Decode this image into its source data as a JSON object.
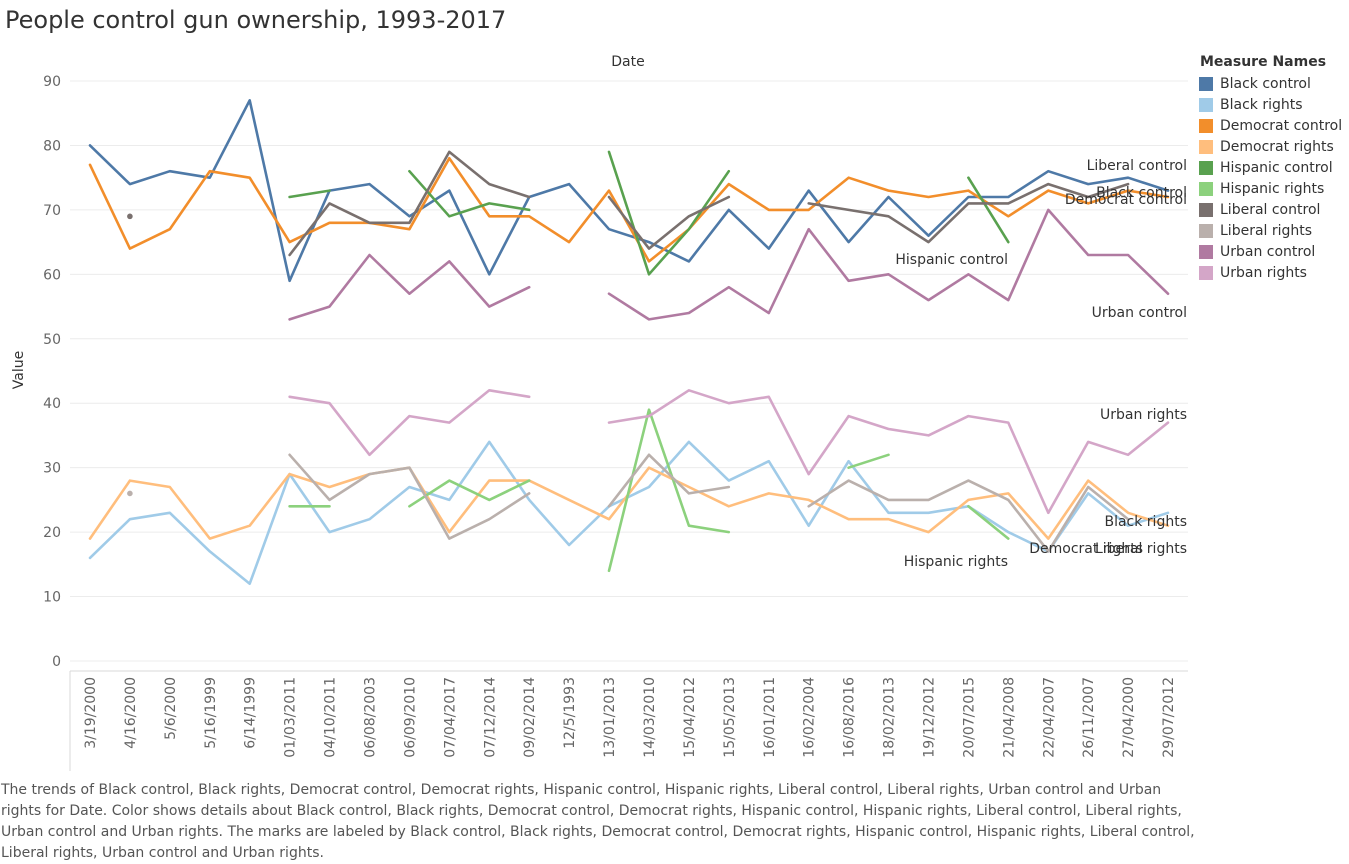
{
  "title": "People control gun ownership, 1993-2017",
  "caption": "The trends of Black control, Black rights, Democrat control, Democrat rights, Hispanic control, Hispanic rights, Liberal control, Liberal rights, Urban control and Urban rights for Date.  Color shows details about Black control, Black rights, Democrat control, Democrat rights, Hispanic control, Hispanic rights, Liberal control, Liberal rights, Urban control and Urban rights.  The marks are labeled by Black control, Black rights, Democrat control, Democrat rights, Hispanic control, Hispanic rights, Liberal control, Liberal rights, Urban control and Urban rights.",
  "legend": {
    "title": "Measure Names",
    "items": [
      {
        "label": "Black control",
        "color": "#4e79a7"
      },
      {
        "label": "Black rights",
        "color": "#a0cbe8"
      },
      {
        "label": "Democrat control",
        "color": "#f28e2b"
      },
      {
        "label": "Democrat rights",
        "color": "#ffbe7d"
      },
      {
        "label": "Hispanic control",
        "color": "#59a14f"
      },
      {
        "label": "Hispanic rights",
        "color": "#8cd17d"
      },
      {
        "label": "Liberal control",
        "color": "#79706e"
      },
      {
        "label": "Liberal rights",
        "color": "#bab0ac"
      },
      {
        "label": "Urban control",
        "color": "#b07aa1"
      },
      {
        "label": "Urban rights",
        "color": "#d4a6c8"
      }
    ]
  },
  "chart_data": {
    "type": "line",
    "xlabel": "Date",
    "ylabel": "Value",
    "ylim": [
      0,
      90
    ],
    "yticks": [
      0,
      10,
      20,
      30,
      40,
      50,
      60,
      70,
      80,
      90
    ],
    "grid": true,
    "legend_position": "right",
    "categories": [
      "3/19/2000",
      "4/16/2000",
      "5/6/2000",
      "5/16/1999",
      "6/14/1999",
      "01/03/2011",
      "04/10/2011",
      "06/08/2003",
      "06/09/2010",
      "07/04/2017",
      "07/12/2014",
      "09/02/2014",
      "12/5/1993",
      "13/01/2013",
      "14/03/2010",
      "15/04/2012",
      "15/05/2013",
      "16/01/2011",
      "16/02/2004",
      "16/08/2016",
      "18/02/2013",
      "19/12/2012",
      "20/07/2015",
      "21/04/2008",
      "22/04/2007",
      "26/11/2007",
      "27/04/2000",
      "29/07/2012"
    ],
    "series": [
      {
        "name": "Black control",
        "color": "#4e79a7",
        "label": "Black control",
        "values": [
          80,
          74,
          76,
          75,
          87,
          59,
          73,
          74,
          69,
          73,
          60,
          72,
          74,
          67,
          65,
          62,
          70,
          64,
          73,
          65,
          72,
          66,
          72,
          72,
          76,
          74,
          75,
          73
        ]
      },
      {
        "name": "Black rights",
        "color": "#a0cbe8",
        "label": "Black rights",
        "values": [
          16,
          22,
          23,
          17,
          12,
          29,
          20,
          22,
          27,
          25,
          34,
          25,
          18,
          24,
          27,
          34,
          28,
          31,
          21,
          31,
          23,
          23,
          24,
          20,
          17,
          26,
          21,
          23
        ]
      },
      {
        "name": "Democrat control",
        "color": "#f28e2b",
        "label": "Democrat control",
        "values": [
          77,
          64,
          67,
          76,
          75,
          65,
          68,
          68,
          67,
          78,
          69,
          69,
          65,
          73,
          62,
          67,
          74,
          70,
          70,
          75,
          73,
          72,
          73,
          69,
          73,
          71,
          73,
          72
        ]
      },
      {
        "name": "Democrat rights",
        "color": "#ffbe7d",
        "label": "Democrat rights",
        "values": [
          19,
          28,
          27,
          19,
          21,
          29,
          27,
          29,
          30,
          20,
          28,
          28,
          25,
          22,
          30,
          27,
          24,
          26,
          25,
          22,
          22,
          20,
          25,
          26,
          19,
          28,
          23,
          21
        ]
      },
      {
        "name": "Hispanic control",
        "color": "#59a14f",
        "label": "Hispanic control",
        "values": [
          null,
          null,
          null,
          null,
          null,
          72,
          73,
          null,
          76,
          69,
          71,
          70,
          null,
          79,
          60,
          67,
          76,
          null,
          null,
          null,
          null,
          null,
          75,
          65,
          null,
          null,
          null,
          null
        ]
      },
      {
        "name": "Hispanic rights",
        "color": "#8cd17d",
        "label": "Hispanic rights",
        "values": [
          null,
          null,
          null,
          null,
          null,
          24,
          24,
          null,
          24,
          28,
          25,
          28,
          null,
          14,
          39,
          21,
          20,
          null,
          null,
          30,
          32,
          null,
          24,
          19,
          null,
          null,
          null,
          null
        ]
      },
      {
        "name": "Liberal control",
        "color": "#79706e",
        "label": "Liberal control",
        "values": [
          null,
          69,
          null,
          null,
          null,
          63,
          71,
          68,
          68,
          79,
          74,
          72,
          null,
          72,
          64,
          69,
          72,
          null,
          71,
          70,
          69,
          65,
          71,
          71,
          74,
          72,
          74,
          null
        ]
      },
      {
        "name": "Liberal rights",
        "color": "#bab0ac",
        "label": "Liberal rights",
        "values": [
          null,
          26,
          null,
          null,
          null,
          32,
          25,
          29,
          30,
          19,
          22,
          26,
          null,
          24,
          32,
          26,
          27,
          null,
          24,
          28,
          25,
          25,
          28,
          25,
          17,
          27,
          22,
          null
        ]
      },
      {
        "name": "Urban control",
        "color": "#b07aa1",
        "label": "Urban control",
        "values": [
          null,
          null,
          null,
          null,
          null,
          53,
          55,
          63,
          57,
          62,
          55,
          58,
          null,
          57,
          53,
          54,
          58,
          54,
          67,
          59,
          60,
          56,
          60,
          56,
          70,
          63,
          63,
          57
        ]
      },
      {
        "name": "Urban rights",
        "color": "#d4a6c8",
        "label": "Urban rights",
        "values": [
          null,
          null,
          null,
          null,
          null,
          41,
          40,
          32,
          38,
          37,
          42,
          41,
          null,
          37,
          38,
          42,
          40,
          41,
          29,
          38,
          36,
          35,
          38,
          37,
          23,
          34,
          32,
          37
        ]
      }
    ],
    "annotations": [
      {
        "text": "Liberal control",
        "series": "Liberal control",
        "at_category": "29/07/2012"
      },
      {
        "text": "Black control",
        "series": "Black control",
        "at_category": "29/07/2012"
      },
      {
        "text": "Democrat control",
        "series": "Democrat control",
        "at_category": "29/07/2012"
      },
      {
        "text": "Hispanic control",
        "series": "Hispanic control",
        "at_category": "18/02/2013"
      },
      {
        "text": "Urban control",
        "series": "Urban control",
        "at_category": "29/07/2012"
      },
      {
        "text": "Urban rights",
        "series": "Urban rights",
        "at_category": "29/07/2012"
      },
      {
        "text": "Black rights",
        "series": "Black rights",
        "at_category": "29/07/2012"
      },
      {
        "text": "Hispanic rights",
        "series": "Hispanic rights",
        "at_category": "18/02/2013"
      },
      {
        "text": "Democrat rights",
        "series": "Democrat rights",
        "at_category": "29/07/2012"
      },
      {
        "text": "Liberal rights",
        "series": "Liberal rights",
        "at_category": "29/07/2012"
      }
    ]
  }
}
